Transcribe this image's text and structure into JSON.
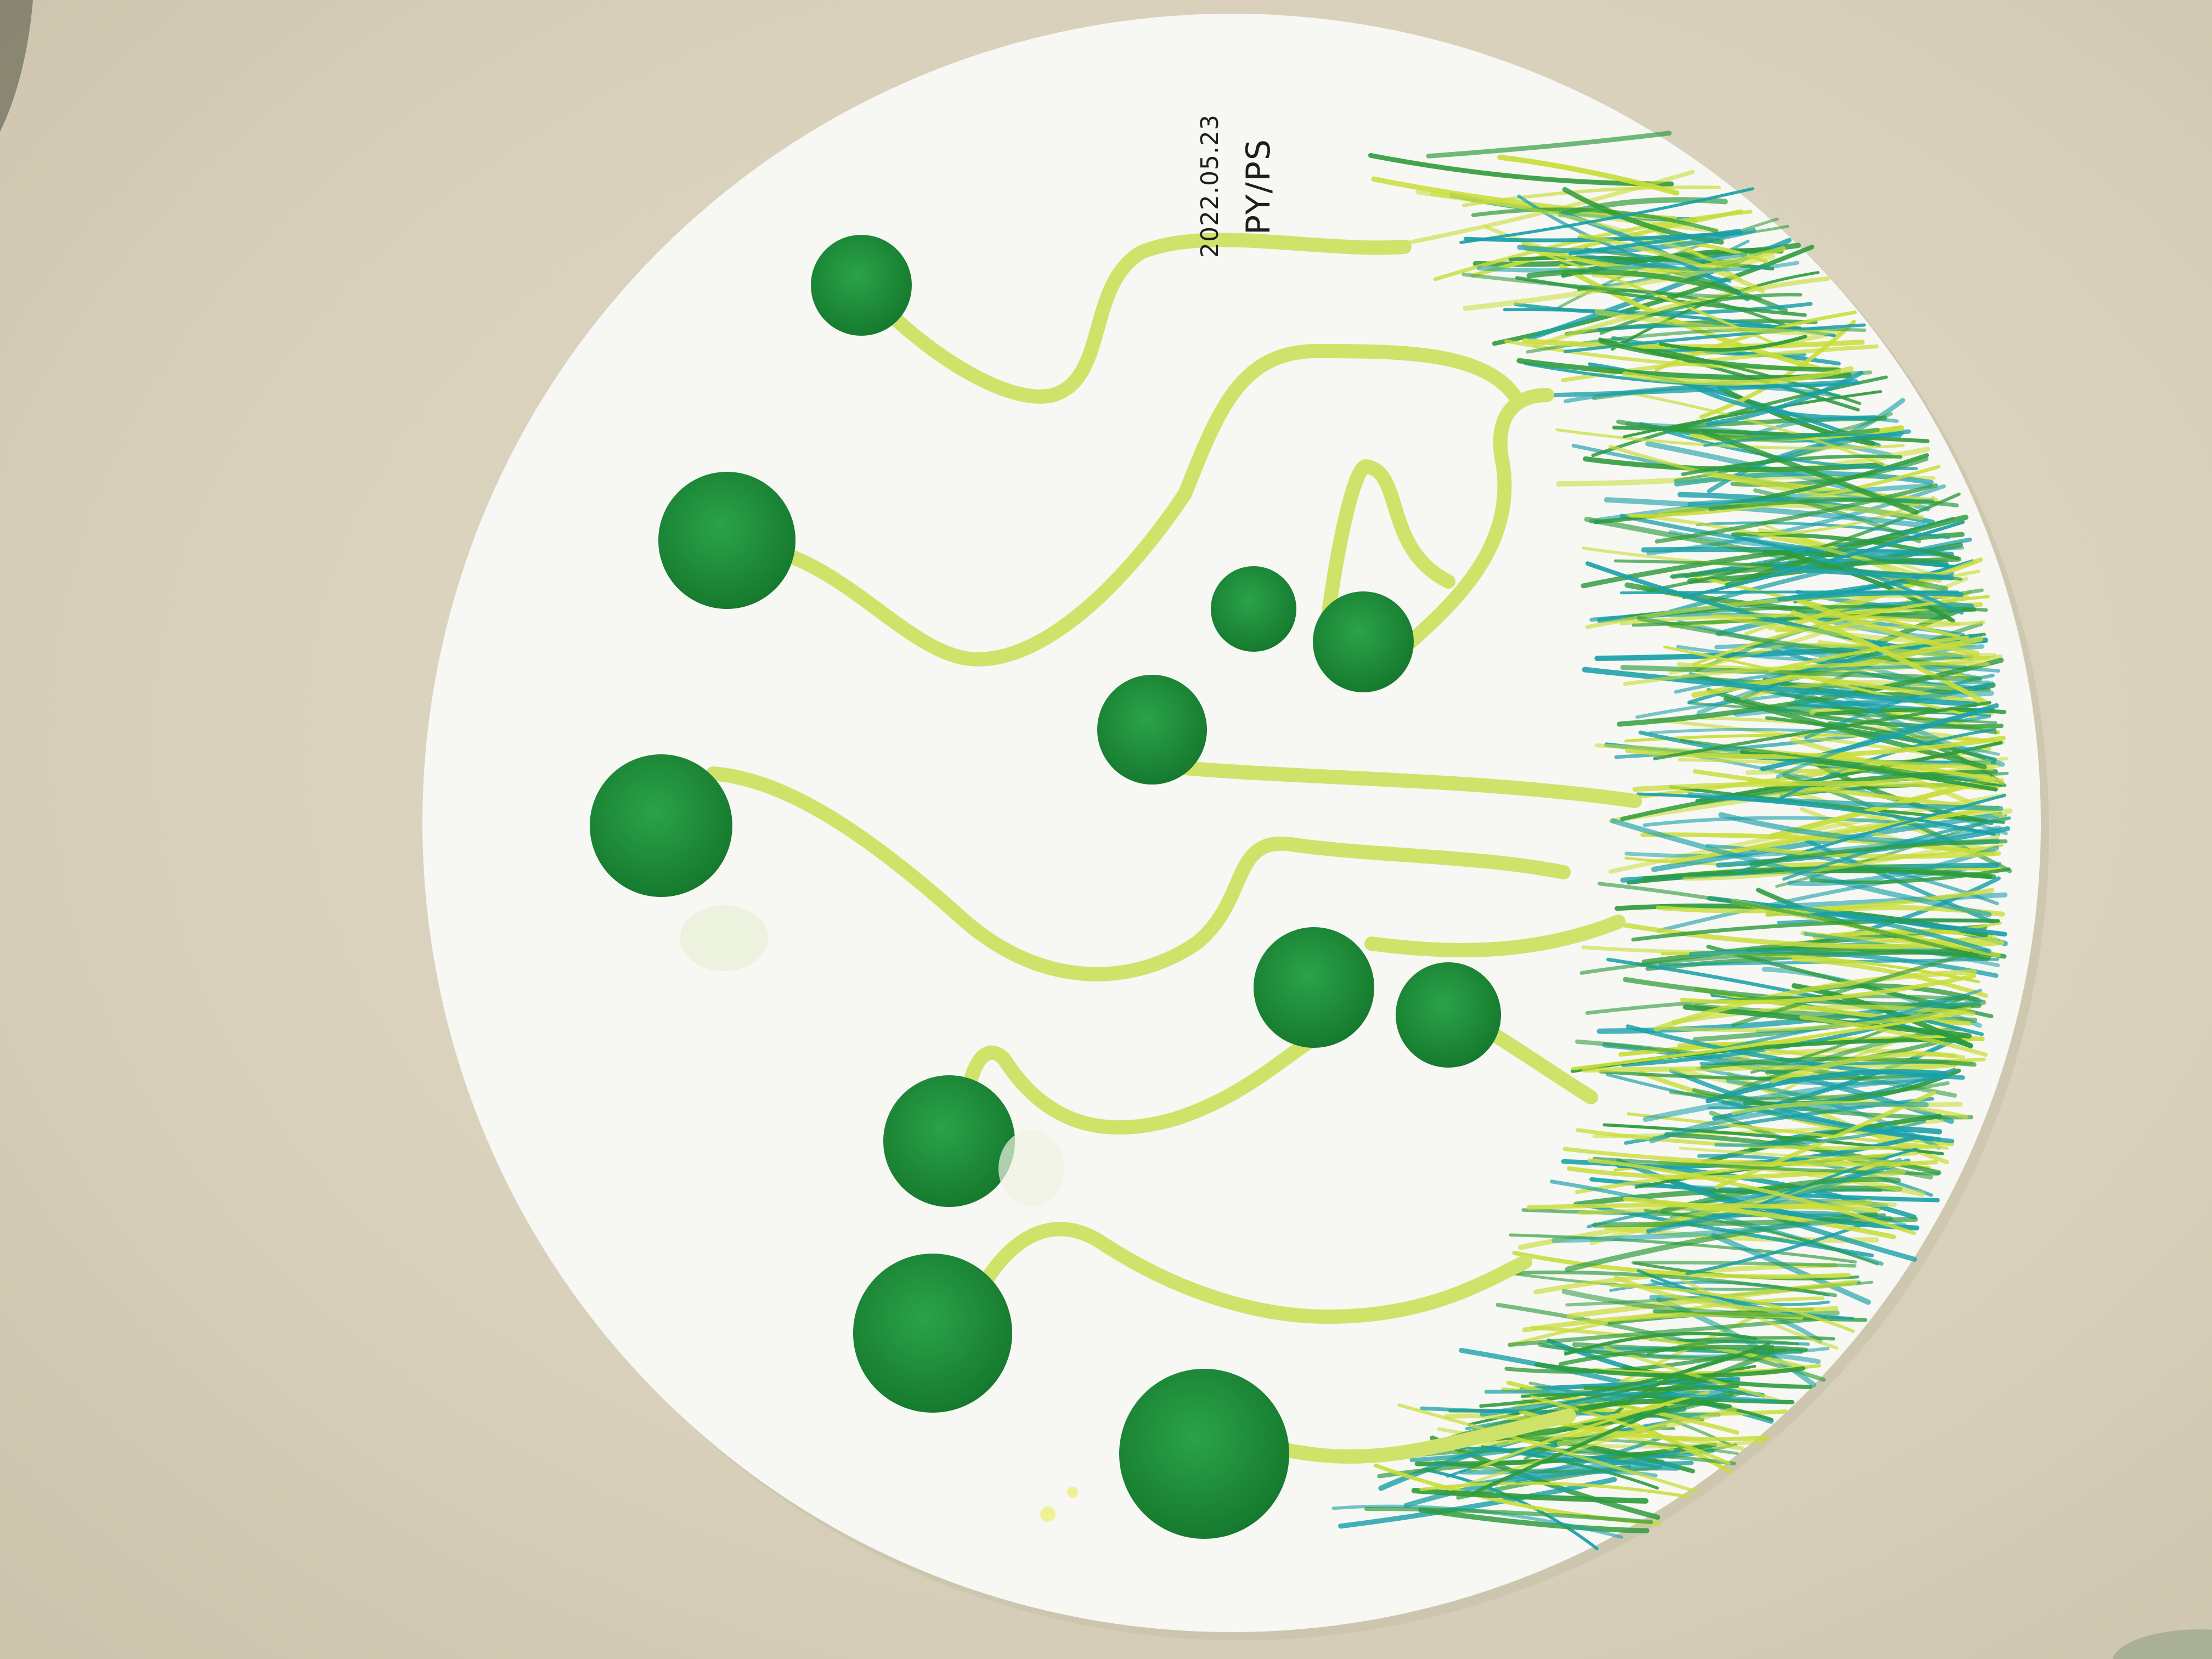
{
  "artwork": {
    "date_text": "2022.05.23",
    "initials_text": "PY/PS"
  },
  "colors": {
    "background": "#d9d2bd",
    "paper": "#f7f7f4",
    "dot_green": "#1e8f3a",
    "stem_yellow_green": "#cfe36a",
    "crayon_teal": "#1aa0a8",
    "crayon_green": "#2e9b3c",
    "crayon_lime": "#c9dd3a"
  }
}
